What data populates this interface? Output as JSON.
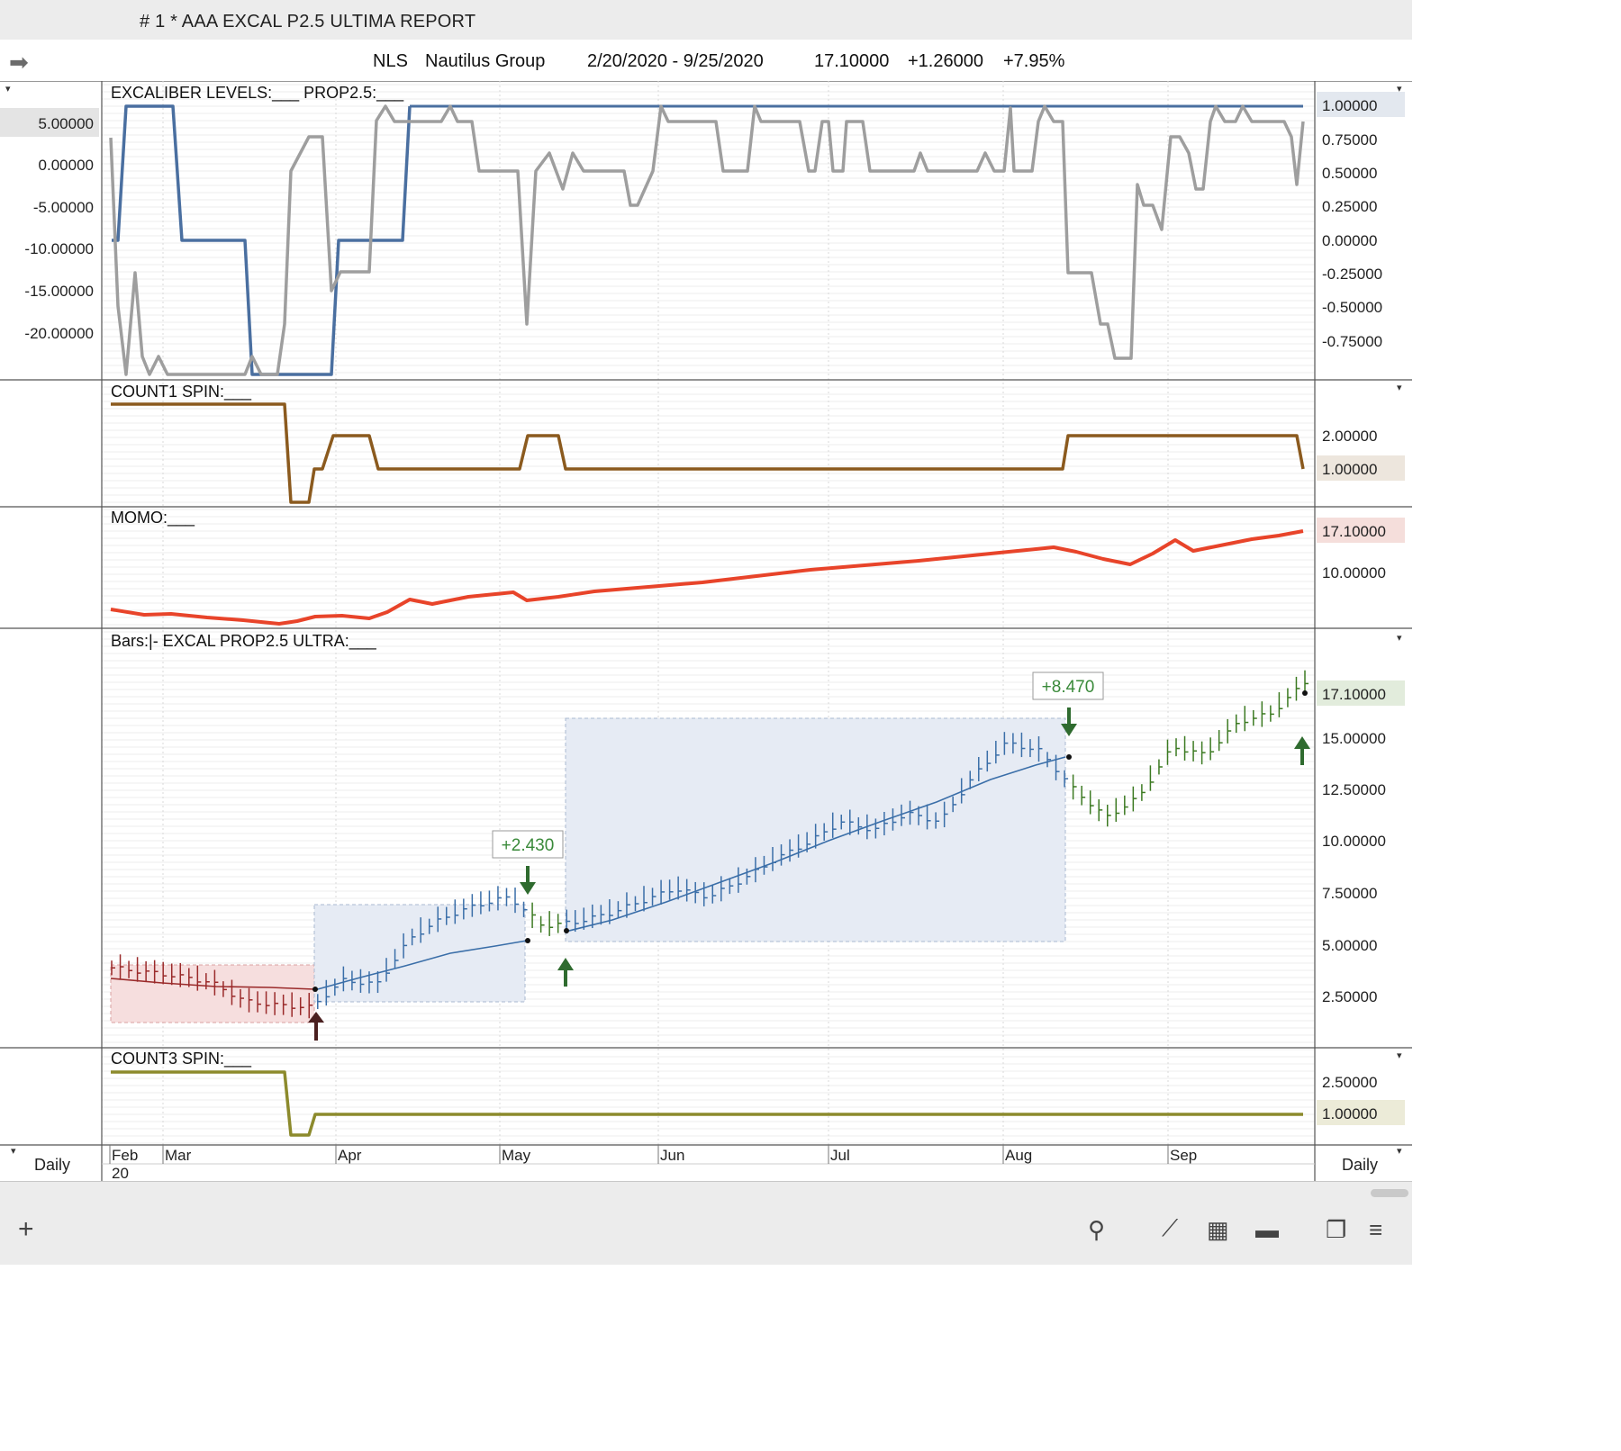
{
  "window": {
    "title": "# 1 *  AAA EXCAL P2.5 ULTIMA REPORT"
  },
  "header": {
    "symbol": "NLS",
    "company": "Nautilus Group",
    "date_range": "2/20/2020 - 9/25/2020",
    "last_price": "17.10000",
    "change": "+1.26000",
    "change_pct": "+7.95%"
  },
  "colors": {
    "excal_line": "#4a6fa0",
    "prop_line": "#9e9e9e",
    "count1_line": "#8b5a1e",
    "momo_line": "#e8442a",
    "count3_line": "#8c8a2c",
    "bars_blue": "#3a6ea8",
    "bars_red": "#9a2a2a",
    "bars_green": "#3c7a22",
    "annotation_green": "#3a8a3a"
  },
  "panels": {
    "excaliber": {
      "legend": "EXCALIBER LEVELS:___    PROP2.5:___",
      "left_axis": [
        "5.00000",
        "0.00000",
        "-5.00000",
        "-10.00000",
        "-15.00000",
        "-20.00000"
      ],
      "right_axis": [
        "1.00000",
        "0.75000",
        "0.50000",
        "0.25000",
        "0.00000",
        "-0.25000",
        "-0.50000",
        "-0.75000"
      ],
      "right_highlight": "1.00000"
    },
    "count1": {
      "legend": "COUNT1 SPIN:___",
      "right_axis": [
        "2.00000",
        "1.00000"
      ],
      "right_highlight": "1.00000"
    },
    "momo": {
      "legend": "MOMO:___",
      "right_axis": [
        "17.10000",
        "10.00000"
      ],
      "right_highlight": "17.10000"
    },
    "bars": {
      "legend": "Bars:|-    EXCAL PROP2.5 ULTRA:___",
      "right_axis": [
        "17.10000",
        "15.00000",
        "12.50000",
        "10.00000",
        "7.50000",
        "5.00000",
        "2.50000"
      ],
      "right_highlight": "17.10000",
      "annotations": [
        "+2.430",
        "+8.470"
      ]
    },
    "count3": {
      "legend": "COUNT3 SPIN:___",
      "right_axis": [
        "2.50000",
        "1.00000"
      ],
      "right_highlight": "1.00000"
    }
  },
  "x_axis": {
    "months": [
      "Feb",
      "Mar",
      "Apr",
      "May",
      "Jun",
      "Jul",
      "Aug",
      "Sep"
    ],
    "year": "20",
    "period_left": "Daily",
    "period_right": "Daily"
  },
  "chart_data": {
    "type": "line",
    "title": "NLS  Nautilus Group",
    "x": [
      "2/20/2020",
      "9/25/2020"
    ],
    "price_series": {
      "name": "Bars",
      "close_approx": [
        3.4,
        3.2,
        3.0,
        2.7,
        1.8,
        1.6,
        1.5,
        2.8,
        2.6,
        4.8,
        5.8,
        6.4,
        6.8,
        5.4,
        5.6,
        6.0,
        6.6,
        7.2,
        6.8,
        7.6,
        8.6,
        9.4,
        10.4,
        10.0,
        10.8,
        10.4,
        12.6,
        14.2,
        13.8,
        12.0,
        10.6,
        11.6,
        14.0,
        13.6,
        15.2,
        15.6,
        17.1
      ],
      "last": 17.1
    },
    "trade_annotations": [
      {
        "label": "+2.430",
        "entry": 2.8,
        "exit": 5.23
      },
      {
        "label": "+8.470",
        "entry": 5.6,
        "exit": 14.07
      }
    ],
    "indicators": {
      "COUNT1 SPIN": {
        "ylim": [
          0,
          2.5
        ],
        "last": 1.0
      },
      "MOMO": {
        "last": 17.1
      },
      "COUNT3 SPIN": {
        "ylim": [
          0,
          3
        ],
        "last": 1.0
      },
      "PROP2.5": {
        "ylim": [
          -1,
          1
        ]
      },
      "EXCALIBER LEVELS": {
        "ylim": [
          -25,
          7
        ]
      }
    }
  }
}
